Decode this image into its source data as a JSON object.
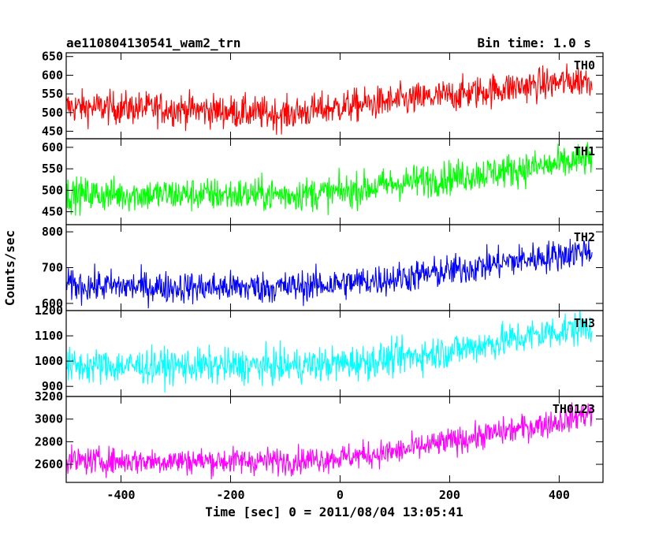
{
  "chart_data": {
    "type": "line",
    "title": "ae110804130541_wam2_trn",
    "subtitle": "Bin time: 1.0 s",
    "xlabel": "Time [sec] 0 = 2011/08/04 13:05:41",
    "ylabel": "Counts/sec",
    "xlim": [
      -500,
      480
    ],
    "xticks": [
      -400,
      -200,
      0,
      200,
      400
    ],
    "grid": false,
    "bin_time_s": 1.0,
    "panels": [
      {
        "name": "TH0",
        "color": "#ff0000",
        "ylim": [
          430,
          660
        ],
        "yticks": [
          450,
          500,
          550,
          600,
          650
        ],
        "x_range": [
          -500,
          460
        ],
        "trend": [
          [
            -500,
            515
          ],
          [
            -300,
            510
          ],
          [
            -100,
            495
          ],
          [
            0,
            515
          ],
          [
            100,
            530
          ],
          [
            200,
            545
          ],
          [
            300,
            565
          ],
          [
            400,
            580
          ],
          [
            460,
            590
          ]
        ],
        "noise_amplitude": 45
      },
      {
        "name": "TH1",
        "color": "#00ff00",
        "ylim": [
          420,
          620
        ],
        "yticks": [
          450,
          500,
          550,
          600
        ],
        "x_range": [
          -500,
          460
        ],
        "trend": [
          [
            -500,
            490
          ],
          [
            -300,
            490
          ],
          [
            -100,
            490
          ],
          [
            0,
            495
          ],
          [
            100,
            515
          ],
          [
            200,
            530
          ],
          [
            300,
            545
          ],
          [
            400,
            560
          ],
          [
            460,
            575
          ]
        ],
        "noise_amplitude": 40
      },
      {
        "name": "TH2",
        "color": "#0000ff",
        "ylim": [
          580,
          820
        ],
        "yticks": [
          600,
          700,
          800
        ],
        "x_range": [
          -500,
          460
        ],
        "trend": [
          [
            -500,
            650
          ],
          [
            -300,
            645
          ],
          [
            -100,
            645
          ],
          [
            0,
            655
          ],
          [
            100,
            670
          ],
          [
            200,
            690
          ],
          [
            300,
            715
          ],
          [
            400,
            735
          ],
          [
            460,
            750
          ]
        ],
        "noise_amplitude": 45
      },
      {
        "name": "TH3",
        "color": "#00ffff",
        "ylim": [
          860,
          1200
        ],
        "yticks": [
          900,
          1000,
          1100,
          1200
        ],
        "x_range": [
          -500,
          460
        ],
        "trend": [
          [
            -500,
            980
          ],
          [
            -300,
            980
          ],
          [
            -100,
            980
          ],
          [
            0,
            990
          ],
          [
            100,
            1010
          ],
          [
            200,
            1040
          ],
          [
            300,
            1080
          ],
          [
            400,
            1120
          ],
          [
            460,
            1135
          ]
        ],
        "noise_amplitude": 70
      },
      {
        "name": "TH0123",
        "color": "#ff00ff",
        "ylim": [
          2440,
          3200
        ],
        "yticks": [
          2600,
          2800,
          3000,
          3200
        ],
        "x_range": [
          -500,
          460
        ],
        "trend": [
          [
            -500,
            2630
          ],
          [
            -300,
            2630
          ],
          [
            -100,
            2630
          ],
          [
            0,
            2660
          ],
          [
            100,
            2710
          ],
          [
            200,
            2800
          ],
          [
            300,
            2890
          ],
          [
            400,
            2980
          ],
          [
            460,
            3060
          ]
        ],
        "noise_amplitude": 120
      }
    ]
  }
}
